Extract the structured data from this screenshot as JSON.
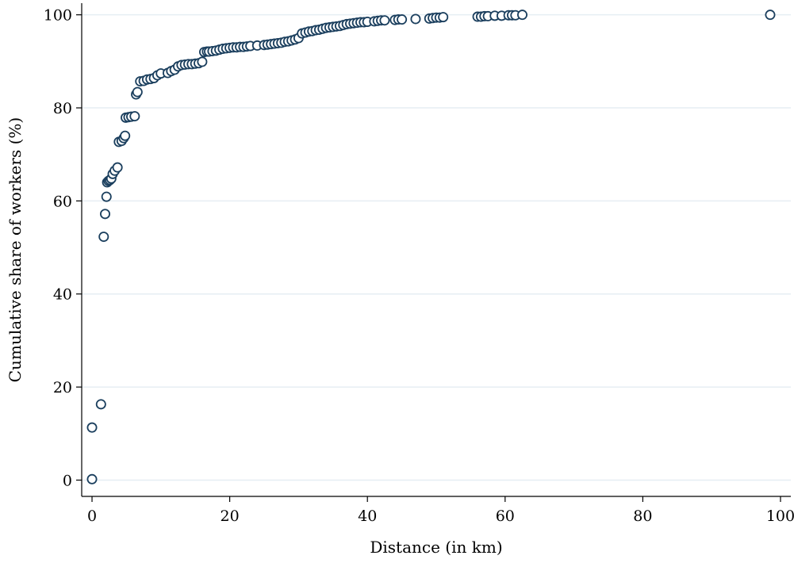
{
  "chart_data": {
    "type": "scatter",
    "title": "",
    "xlabel": "Distance (in km)",
    "ylabel": "Cumulative share of workers (%)",
    "xlim": [
      -1.5,
      101.5
    ],
    "ylim": [
      -3.5,
      102.5
    ],
    "xticks": [
      0,
      20,
      40,
      60,
      80,
      100
    ],
    "yticks": [
      0,
      20,
      40,
      60,
      80,
      100
    ],
    "grid": "horizontal",
    "marker": "hollow-circle",
    "colors": {
      "marker_stroke": "#1b3f5e",
      "grid": "#e6eef3",
      "axis": "#000000"
    },
    "x": [
      0,
      0,
      1.3,
      1.7,
      1.9,
      2.1,
      2.2,
      2.4,
      2.6,
      2.8,
      3.0,
      3.3,
      3.7,
      3.9,
      4.3,
      4.6,
      4.8,
      4.9,
      5.3,
      5.7,
      6.2,
      6.4,
      6.6,
      7.0,
      7.5,
      8.0,
      8.5,
      9.0,
      9.5,
      10.0,
      11.0,
      11.5,
      12.0,
      12.5,
      13.0,
      13.5,
      14.0,
      14.5,
      15.0,
      15.5,
      16.0,
      16.3,
      16.7,
      17.0,
      17.5,
      18.0,
      18.5,
      19.0,
      19.5,
      20.0,
      20.5,
      21.0,
      21.5,
      22.0,
      22.5,
      23.0,
      24.0,
      25.0,
      25.5,
      26.0,
      26.5,
      27.0,
      27.5,
      28.0,
      28.5,
      29.0,
      29.5,
      30.0,
      30.5,
      31.0,
      31.5,
      32.0,
      32.5,
      33.0,
      33.5,
      34.0,
      34.5,
      35.0,
      35.5,
      36.0,
      36.5,
      37.0,
      37.5,
      38.0,
      38.5,
      39.0,
      39.5,
      40.0,
      41.0,
      41.5,
      42.0,
      42.5,
      44.0,
      44.5,
      45.0,
      47.0,
      49.0,
      49.5,
      50.0,
      50.5,
      51.0,
      56.0,
      56.5,
      57.0,
      57.5,
      58.5,
      59.5,
      60.5,
      61.0,
      61.5,
      62.5,
      98.5
    ],
    "y": [
      0.2,
      11.3,
      16.3,
      52.3,
      57.2,
      60.9,
      64.0,
      64.3,
      64.5,
      64.8,
      65.8,
      66.5,
      67.2,
      72.7,
      72.9,
      73.5,
      74.0,
      77.9,
      78.0,
      78.1,
      78.2,
      82.9,
      83.4,
      85.7,
      85.8,
      86.1,
      86.2,
      86.4,
      87.0,
      87.4,
      87.5,
      87.9,
      88.2,
      88.9,
      89.2,
      89.3,
      89.4,
      89.4,
      89.5,
      89.6,
      89.9,
      92.0,
      92.1,
      92.1,
      92.2,
      92.3,
      92.5,
      92.7,
      92.8,
      92.9,
      93.0,
      93.0,
      93.1,
      93.1,
      93.2,
      93.3,
      93.4,
      93.5,
      93.6,
      93.7,
      93.8,
      93.9,
      94.0,
      94.2,
      94.3,
      94.5,
      94.7,
      95.0,
      96.0,
      96.2,
      96.4,
      96.5,
      96.7,
      96.8,
      97.0,
      97.2,
      97.3,
      97.4,
      97.5,
      97.6,
      97.8,
      98.0,
      98.1,
      98.2,
      98.3,
      98.4,
      98.4,
      98.5,
      98.6,
      98.7,
      98.8,
      98.8,
      98.9,
      99.0,
      99.0,
      99.1,
      99.2,
      99.3,
      99.4,
      99.4,
      99.5,
      99.6,
      99.6,
      99.7,
      99.7,
      99.8,
      99.8,
      99.9,
      99.9,
      99.9,
      100.0,
      100.0
    ]
  }
}
